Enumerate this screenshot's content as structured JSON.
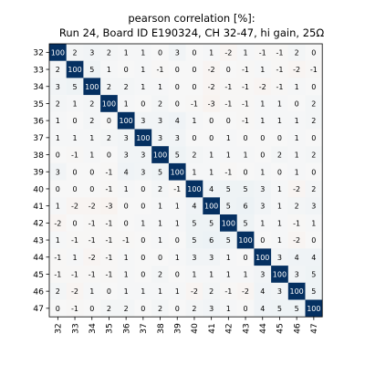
{
  "chart_data": {
    "type": "heatmap",
    "title": "pearson correlation [%]:",
    "subtitle": "Run 24, Board ID E190324, CH 32-47, hi gain, 25Ω",
    "x_categories": [
      "32",
      "33",
      "34",
      "35",
      "36",
      "37",
      "38",
      "39",
      "40",
      "41",
      "42",
      "43",
      "44",
      "45",
      "46",
      "47"
    ],
    "y_categories": [
      "32",
      "33",
      "34",
      "35",
      "36",
      "37",
      "38",
      "39",
      "40",
      "41",
      "42",
      "43",
      "44",
      "45",
      "46",
      "47"
    ],
    "colormap": "RdBu_r",
    "vmin": -100,
    "vmax": 100,
    "matrix": [
      [
        100,
        2,
        3,
        2,
        1,
        1,
        0,
        3,
        0,
        1,
        -2,
        1,
        -1,
        -1,
        2,
        0
      ],
      [
        2,
        100,
        5,
        1,
        0,
        1,
        -1,
        0,
        0,
        -2,
        0,
        -1,
        1,
        -1,
        -2,
        -1
      ],
      [
        3,
        5,
        100,
        2,
        2,
        1,
        1,
        0,
        0,
        -2,
        -1,
        -1,
        -2,
        -1,
        1,
        0
      ],
      [
        2,
        1,
        2,
        100,
        1,
        0,
        2,
        0,
        -1,
        -3,
        -1,
        -1,
        1,
        1,
        0,
        2
      ],
      [
        1,
        0,
        2,
        0,
        100,
        3,
        3,
        4,
        1,
        0,
        0,
        -1,
        1,
        1,
        1,
        2
      ],
      [
        1,
        1,
        1,
        2,
        3,
        100,
        3,
        3,
        0,
        0,
        1,
        0,
        0,
        0,
        1,
        0
      ],
      [
        0,
        -1,
        1,
        0,
        3,
        3,
        100,
        5,
        2,
        1,
        1,
        1,
        0,
        2,
        1,
        2
      ],
      [
        3,
        0,
        0,
        -1,
        4,
        3,
        5,
        100,
        1,
        1,
        -1,
        0,
        1,
        0,
        1,
        0
      ],
      [
        0,
        0,
        0,
        -1,
        1,
        0,
        2,
        -1,
        100,
        4,
        5,
        5,
        3,
        1,
        -2,
        2
      ],
      [
        1,
        -2,
        -2,
        -3,
        0,
        0,
        1,
        1,
        4,
        100,
        5,
        6,
        3,
        1,
        2,
        3
      ],
      [
        -2,
        0,
        -1,
        -1,
        0,
        1,
        1,
        1,
        5,
        5,
        100,
        5,
        1,
        1,
        -1,
        1
      ],
      [
        1,
        -1,
        -1,
        -1,
        -1,
        0,
        1,
        0,
        5,
        6,
        5,
        100,
        0,
        1,
        -2,
        0
      ],
      [
        -1,
        1,
        -2,
        -1,
        1,
        0,
        0,
        1,
        3,
        3,
        1,
        0,
        100,
        3,
        4,
        4
      ],
      [
        -1,
        -1,
        -1,
        -1,
        1,
        0,
        2,
        0,
        1,
        1,
        1,
        1,
        3,
        100,
        3,
        5
      ],
      [
        2,
        -2,
        1,
        0,
        1,
        1,
        1,
        1,
        -2,
        2,
        -1,
        -2,
        4,
        3,
        100,
        5
      ],
      [
        0,
        -1,
        0,
        2,
        2,
        0,
        2,
        0,
        2,
        3,
        1,
        0,
        4,
        5,
        5,
        100
      ]
    ]
  }
}
